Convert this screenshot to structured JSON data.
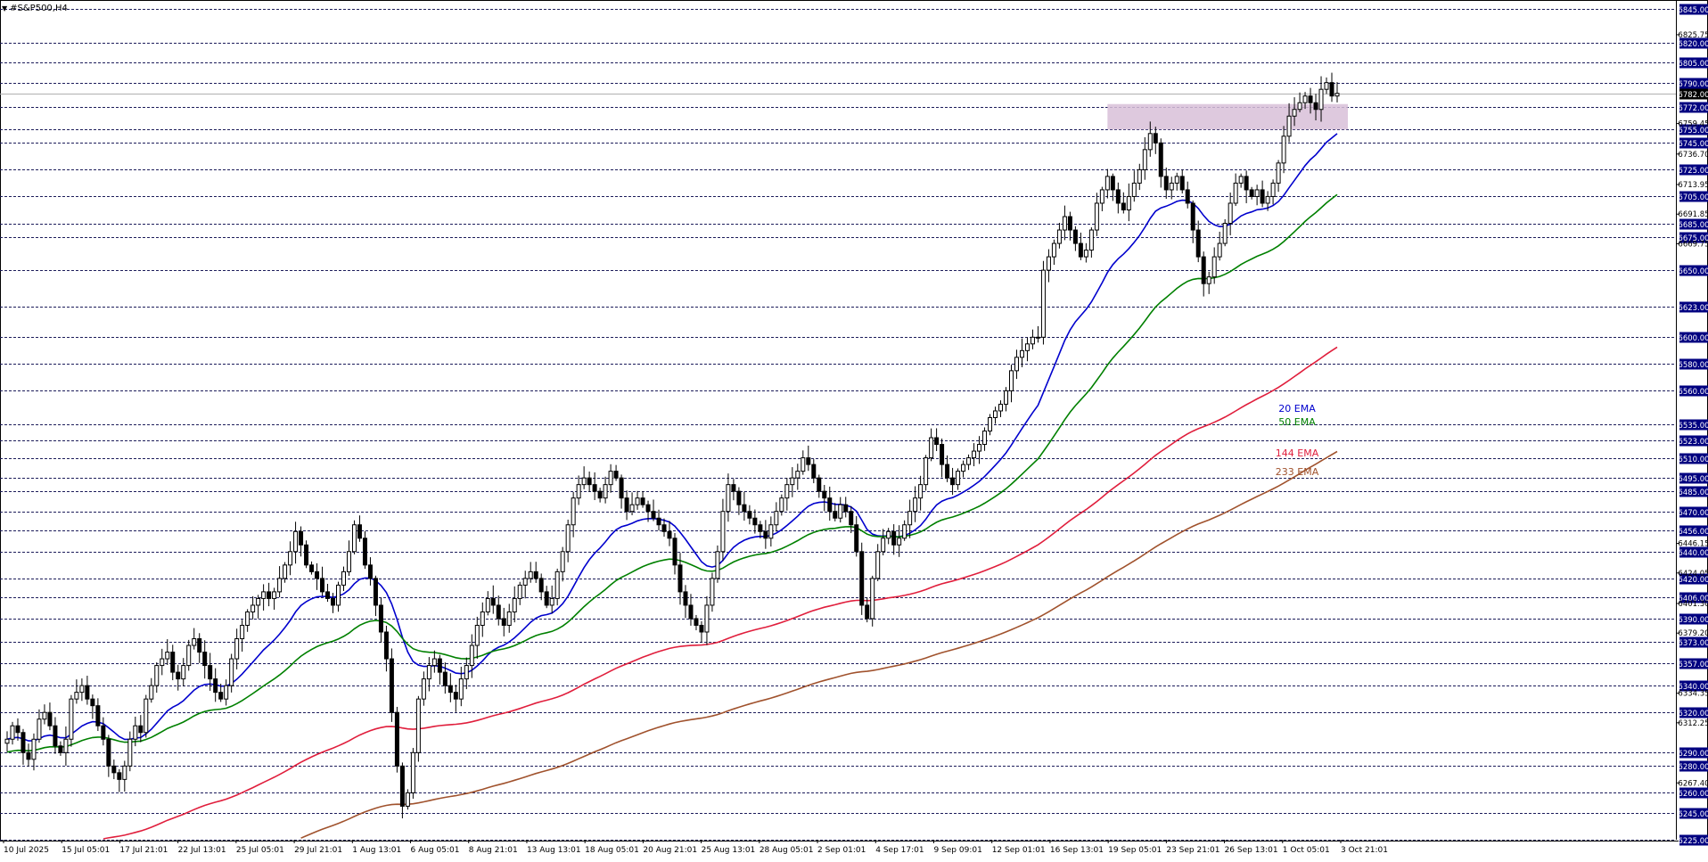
{
  "window": {
    "title": "#S&P500,H4",
    "dropdown_glyph": "▼"
  },
  "colors": {
    "background": "#ffffff",
    "candle": "#000000",
    "grid": "#1c1c5a",
    "ema20": "#0000cd",
    "ema50": "#008000",
    "ema144": "#e01e3c",
    "ema233": "#a0522d",
    "zone": "#d8bfd8",
    "price_tag_bg": "#000080",
    "price_tag_text": "#ffffff"
  },
  "chart_data": {
    "type": "candlestick",
    "symbol": "#S&P500",
    "timeframe": "H4",
    "ylim": [
      6225,
      6845
    ],
    "x_tick_labels": [
      "10 Jul 2025",
      "15 Jul 05:01",
      "17 Jul 21:01",
      "22 Jul 13:01",
      "25 Jul 05:01",
      "29 Jul 21:01",
      "1 Aug 13:01",
      "6 Aug 05:01",
      "8 Aug 21:01",
      "13 Aug 13:01",
      "18 Aug 05:01",
      "20 Aug 21:01",
      "25 Aug 13:01",
      "28 Aug 05:01",
      "2 Sep 01:01",
      "4 Sep 17:01",
      "9 Sep 09:01",
      "12 Sep 01:01",
      "16 Sep 13:01",
      "19 Sep 05:01",
      "23 Sep 21:01",
      "26 Sep 13:01",
      "1 Oct 05:01",
      "3 Oct 21:01"
    ],
    "horizontal_levels": [
      6845.0,
      6820.0,
      6805.0,
      6790.0,
      6772.0,
      6755.0,
      6745.0,
      6725.0,
      6705.0,
      6685.0,
      6675.0,
      6650.0,
      6623.0,
      6600.0,
      6580.0,
      6560.0,
      6535.0,
      6523.0,
      6510.0,
      6495.0,
      6485.0,
      6470.0,
      6456.0,
      6440.0,
      6420.0,
      6406.0,
      6390.0,
      6373.0,
      6357.0,
      6340.0,
      6320.0,
      6290.0,
      6280.0,
      6260.0,
      6245.0,
      6225.0
    ],
    "level_labels": [
      "6845.00",
      "6820.00",
      "6805.00",
      "6790.00",
      "6772.00",
      "6755.00",
      "6745.00",
      "6725.00",
      "6705.00",
      "6685.00",
      "6675.00",
      "6650.00",
      "6623.00",
      "6600.00",
      "6580.00",
      "6560.00",
      "6535.00",
      "6523.00",
      "6510.00",
      "6495.00",
      "6485.00",
      "6470.00",
      "6456.00",
      "6440.00",
      "6420.00",
      "6406.00",
      "6390.00",
      "6373.00",
      "6357.00",
      "6340.00",
      "6320.00",
      "6290.00",
      "6280.00",
      "6260.00",
      "6245.00",
      "6225.00"
    ],
    "minor_tick_values": [
      6825.75,
      6759.45,
      6736.7,
      6713.95,
      6691.85,
      6669.75,
      6446.15,
      6424.05,
      6401.3,
      6379.2,
      6334.35,
      6312.25,
      6267.4
    ],
    "minor_tick_labels": [
      "6825.75",
      "6759.45",
      "6736.70",
      "6713.95",
      "6691.85",
      "6669.75",
      "6446.15",
      "6424.05",
      "6401.30",
      "6379.20",
      "6334.35",
      "6312.25",
      "6267.40"
    ],
    "current_price": 6782.0,
    "current_price_label": "6782.00",
    "zone": {
      "from_date": "19 Sep 05:01",
      "to_date": "3 Oct 21:01",
      "low": 6755,
      "high": 6774
    },
    "ohlc_closes": [
      6300,
      6310,
      6305,
      6290,
      6285,
      6300,
      6315,
      6320,
      6310,
      6295,
      6290,
      6300,
      6330,
      6335,
      6340,
      6330,
      6325,
      6310,
      6300,
      6280,
      6275,
      6270,
      6280,
      6300,
      6310,
      6305,
      6330,
      6340,
      6355,
      6360,
      6365,
      6350,
      6345,
      6355,
      6370,
      6375,
      6365,
      6355,
      6345,
      6335,
      6330,
      6340,
      6360,
      6375,
      6385,
      6395,
      6400,
      6405,
      6410,
      6405,
      6410,
      6420,
      6430,
      6440,
      6455,
      6445,
      6430,
      6425,
      6420,
      6410,
      6405,
      6400,
      6415,
      6425,
      6440,
      6460,
      6450,
      6430,
      6420,
      6400,
      6380,
      6360,
      6320,
      6280,
      6250,
      6260,
      6290,
      6330,
      6345,
      6355,
      6360,
      6350,
      6340,
      6335,
      6330,
      6345,
      6355,
      6370,
      6385,
      6395,
      6405,
      6400,
      6390,
      6385,
      6395,
      6405,
      6415,
      6420,
      6425,
      6420,
      6410,
      6400,
      6405,
      6425,
      6440,
      6460,
      6480,
      6490,
      6495,
      6490,
      6485,
      6480,
      6490,
      6500,
      6495,
      6480,
      6470,
      6475,
      6480,
      6475,
      6470,
      6465,
      6460,
      6455,
      6450,
      6430,
      6410,
      6400,
      6390,
      6385,
      6380,
      6400,
      6420,
      6440,
      6470,
      6490,
      6485,
      6475,
      6470,
      6465,
      6460,
      6455,
      6450,
      6460,
      6470,
      6480,
      6490,
      6495,
      6500,
      6510,
      6505,
      6495,
      6485,
      6480,
      6470,
      6465,
      6475,
      6470,
      6460,
      6440,
      6400,
      6390,
      6420,
      6440,
      6450,
      6455,
      6445,
      6450,
      6460,
      6470,
      6480,
      6490,
      6510,
      6525,
      6520,
      6505,
      6495,
      6490,
      6500,
      6505,
      6510,
      6515,
      6520,
      6530,
      6540,
      6545,
      6550,
      6560,
      6575,
      6585,
      6590,
      6595,
      6600,
      6600,
      6650,
      6660,
      6670,
      6680,
      6690,
      6680,
      6670,
      6660,
      6665,
      6680,
      6700,
      6710,
      6720,
      6710,
      6700,
      6695,
      6705,
      6715,
      6725,
      6740,
      6752,
      6745,
      6720,
      6710,
      6715,
      6720,
      6710,
      6700,
      6680,
      6660,
      6640,
      6645,
      6660,
      6670,
      6685,
      6700,
      6715,
      6720,
      6710,
      6705,
      6710,
      6700,
      6705,
      6715,
      6730,
      6750,
      6765,
      6770,
      6775,
      6780,
      6775,
      6770,
      6785,
      6790,
      6780,
      6782
    ]
  },
  "legend": {
    "ema20": "20 EMA",
    "ema50": "50 EMA",
    "ema144": "144 EMA",
    "ema233": "233 EMA"
  }
}
